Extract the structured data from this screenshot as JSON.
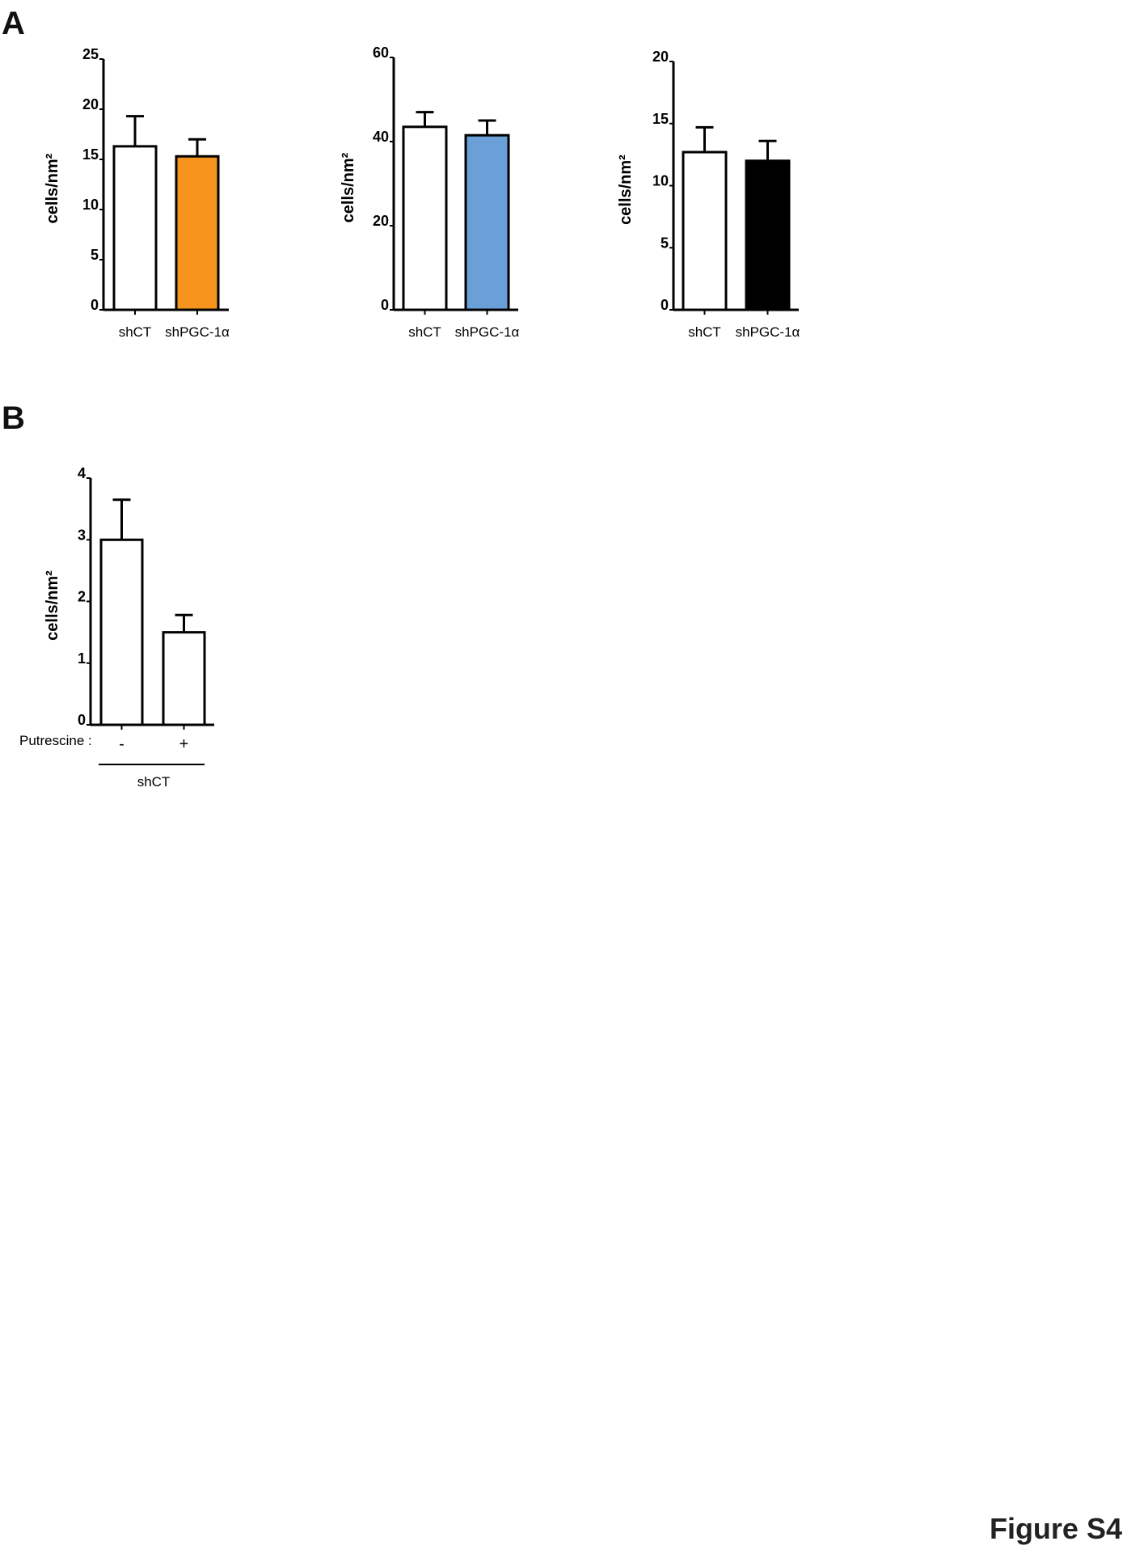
{
  "panel_labels": {
    "a": "A",
    "b": "B"
  },
  "figure_label": "Figure S4",
  "chart_data": [
    {
      "type": "bar",
      "panel": "A",
      "ylabel": "cells/nm²",
      "ylim": [
        0,
        25
      ],
      "yticks": [
        "0",
        "5",
        "10",
        "15",
        "20",
        "25"
      ],
      "categories": [
        "shCT",
        "shPGC-1α"
      ],
      "values": [
        16.3,
        15.3
      ],
      "error_upper": [
        19.3,
        17.0
      ],
      "colors": [
        "#ffffff",
        "#f7941d"
      ]
    },
    {
      "type": "bar",
      "panel": "A",
      "ylabel": "cells/nm²",
      "ylim": [
        0,
        60
      ],
      "yticks": [
        "0",
        "20",
        "40",
        "60"
      ],
      "categories": [
        "shCT",
        "shPGC-1α"
      ],
      "values": [
        43.5,
        41.5
      ],
      "error_upper": [
        47.0,
        45.0
      ],
      "colors": [
        "#ffffff",
        "#6a9fd8"
      ]
    },
    {
      "type": "bar",
      "panel": "A",
      "ylabel": "cells/nm²",
      "ylim": [
        0,
        20
      ],
      "yticks": [
        "0",
        "5",
        "10",
        "15",
        "20"
      ],
      "categories": [
        "shCT",
        "shPGC-1α"
      ],
      "values": [
        12.7,
        12.0
      ],
      "error_upper": [
        14.7,
        13.6
      ],
      "colors": [
        "#ffffff",
        "#000000"
      ]
    },
    {
      "type": "bar",
      "panel": "B",
      "ylabel": "cells/nm²",
      "ylim": [
        0,
        4
      ],
      "yticks": [
        "0",
        "1",
        "2",
        "3",
        "4"
      ],
      "row_label": "Putrescine :",
      "categories": [
        "-",
        "+"
      ],
      "group_label": "shCT",
      "values": [
        3.0,
        1.5
      ],
      "error_upper": [
        3.65,
        1.78
      ],
      "colors": [
        "#ffffff",
        "#ffffff"
      ]
    }
  ]
}
